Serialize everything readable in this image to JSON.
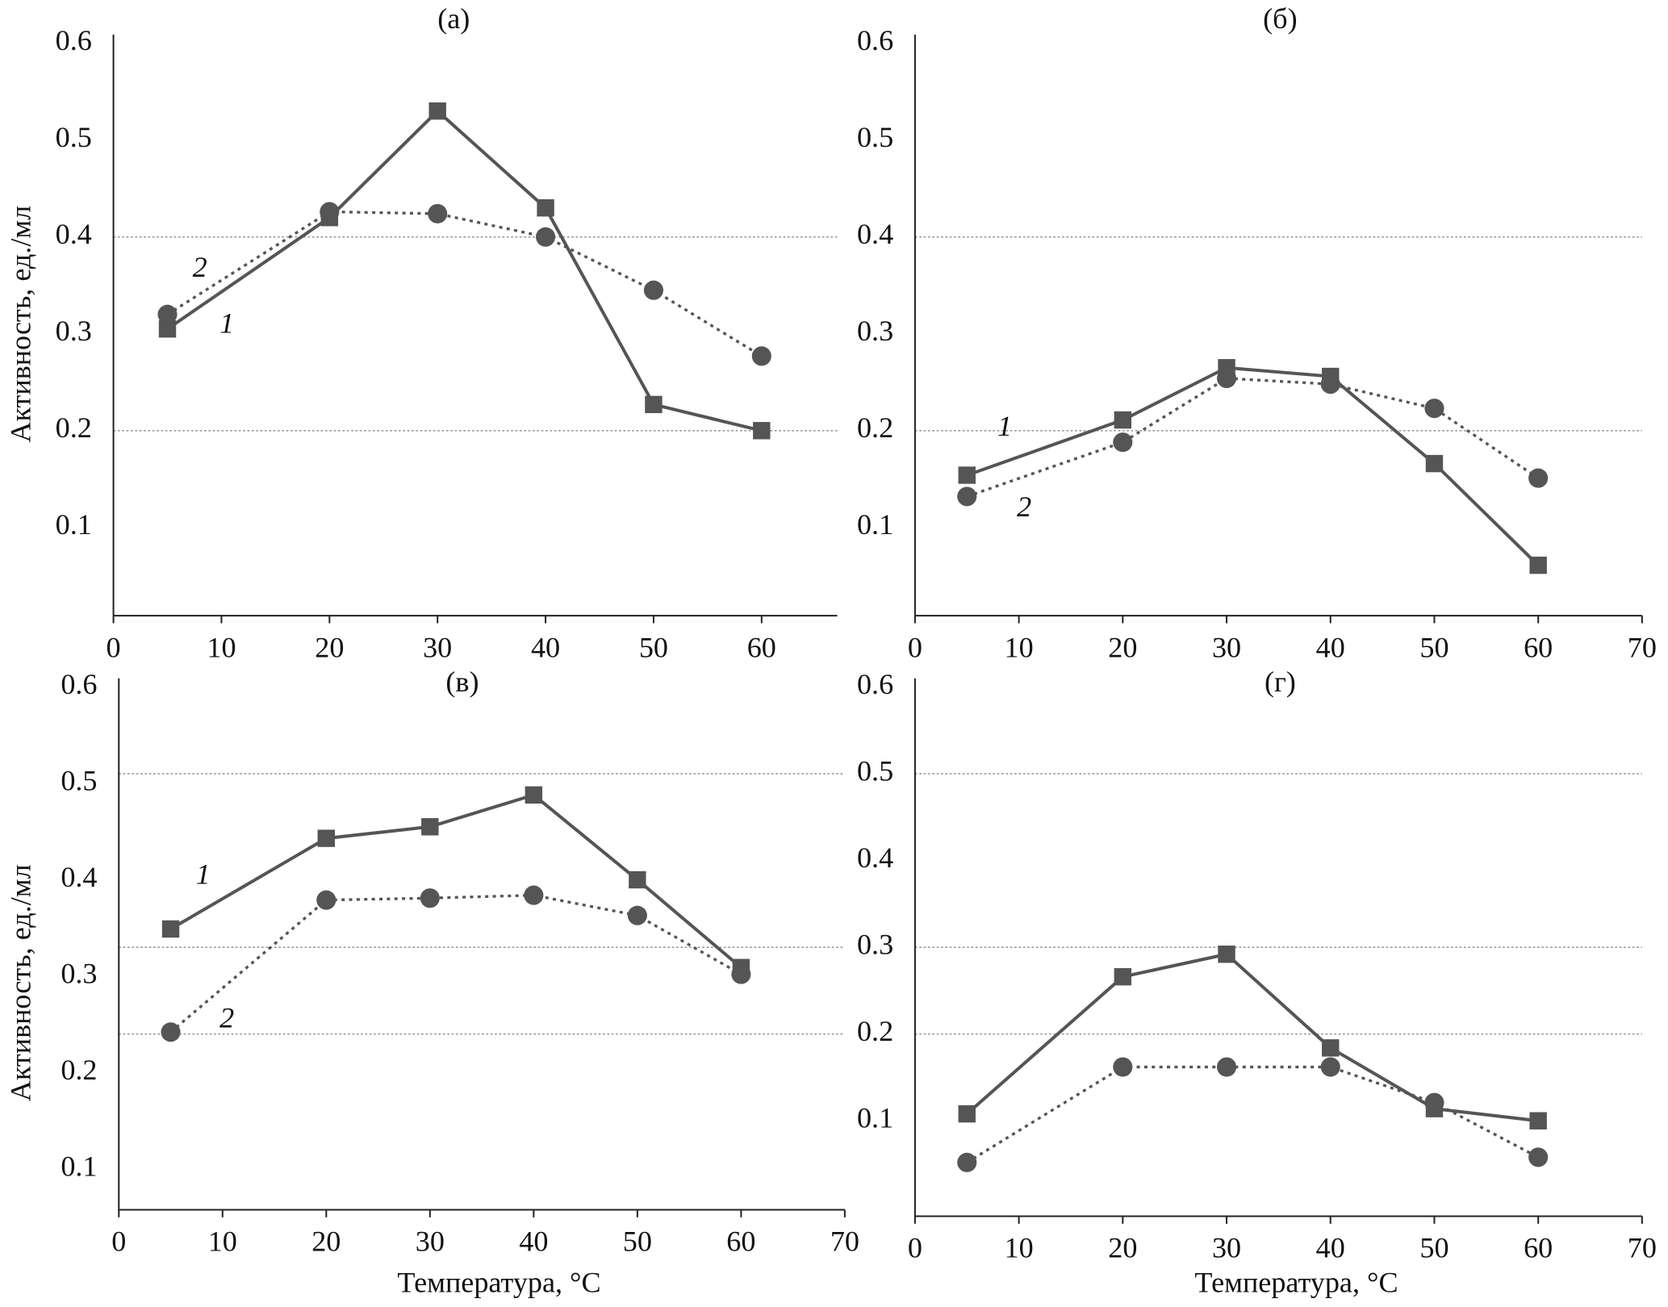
{
  "chart_data": [
    {
      "type": "line",
      "title": "(а)",
      "ylabel": "Активность, ед./мл",
      "x": [
        5,
        20,
        30,
        40,
        50,
        60
      ],
      "xlim": [
        0,
        67
      ],
      "xticks": [
        0,
        10,
        20,
        30,
        40,
        50,
        60
      ],
      "ylim": [
        0,
        0.6
      ],
      "yticks": [
        0.1,
        0.2,
        0.3,
        0.4,
        0.5,
        0.6
      ],
      "gridlines": [
        0.2,
        0.4
      ],
      "series": [
        {
          "name": "1",
          "color": "#555555",
          "marker": "square",
          "linestyle": "solid",
          "values": [
            0.305,
            0.42,
            0.53,
            0.43,
            0.227,
            0.2
          ]
        },
        {
          "name": "2",
          "color": "#555555",
          "marker": "circle",
          "linestyle": "dotted",
          "values": [
            0.32,
            0.426,
            0.424,
            0.4,
            0.345,
            0.277
          ]
        }
      ]
    },
    {
      "type": "line",
      "title": "(б)",
      "x": [
        5,
        20,
        30,
        40,
        50,
        60
      ],
      "xlim": [
        0,
        70
      ],
      "xticks": [
        0,
        10,
        20,
        30,
        40,
        50,
        60,
        70
      ],
      "ylim": [
        0,
        0.6
      ],
      "yticks": [
        0.1,
        0.2,
        0.3,
        0.4,
        0.5,
        0.6
      ],
      "gridlines": [
        0.2,
        0.4
      ],
      "series": [
        {
          "name": "1",
          "color": "#555555",
          "marker": "square",
          "linestyle": "solid",
          "values": [
            0.154,
            0.211,
            0.265,
            0.256,
            0.166,
            0.061
          ]
        },
        {
          "name": "2",
          "color": "#555555",
          "marker": "circle",
          "linestyle": "dotted",
          "values": [
            0.132,
            0.188,
            0.254,
            0.248,
            0.223,
            0.151
          ]
        }
      ]
    },
    {
      "type": "line",
      "title": "(в)",
      "ylabel": "Активность, ед./мл",
      "xlabel": "Температура, °C",
      "x": [
        5,
        20,
        30,
        40,
        50,
        60
      ],
      "xlim": [
        0,
        70
      ],
      "xticks": [
        0,
        10,
        20,
        30,
        40,
        50,
        60,
        70
      ],
      "ylim": [
        0.06,
        0.6
      ],
      "yticks": [
        0.1,
        0.2,
        0.3,
        0.4,
        0.5,
        0.6
      ],
      "gridlines": [
        0.51,
        0.33,
        0.24
      ],
      "series": [
        {
          "name": "1",
          "color": "#555555",
          "marker": "square",
          "linestyle": "solid",
          "values": [
            0.349,
            0.443,
            0.455,
            0.488,
            0.4,
            0.309
          ]
        },
        {
          "name": "2",
          "color": "#555555",
          "marker": "circle",
          "linestyle": "dotted",
          "values": [
            0.242,
            0.379,
            0.381,
            0.384,
            0.363,
            0.302
          ]
        }
      ]
    },
    {
      "type": "line",
      "title": "(г)",
      "xlabel": "Температура, °C",
      "x": [
        5,
        20,
        30,
        40,
        50,
        60
      ],
      "xlim": [
        0,
        70
      ],
      "xticks": [
        0,
        10,
        20,
        30,
        40,
        50,
        60,
        70
      ],
      "ylim": [
        0,
        0.6
      ],
      "yticks": [
        0.1,
        0.2,
        0.3,
        0.4,
        0.5,
        0.6
      ],
      "gridlines": [
        0.5,
        0.3,
        0.2
      ],
      "series": [
        {
          "color": "#555555",
          "marker": "square",
          "linestyle": "solid",
          "values": [
            0.108,
            0.266,
            0.292,
            0.184,
            0.114,
            0.1
          ]
        },
        {
          "color": "#555555",
          "marker": "circle",
          "linestyle": "dotted",
          "values": [
            0.052,
            0.162,
            0.162,
            0.162,
            0.121,
            0.058
          ]
        }
      ]
    }
  ]
}
